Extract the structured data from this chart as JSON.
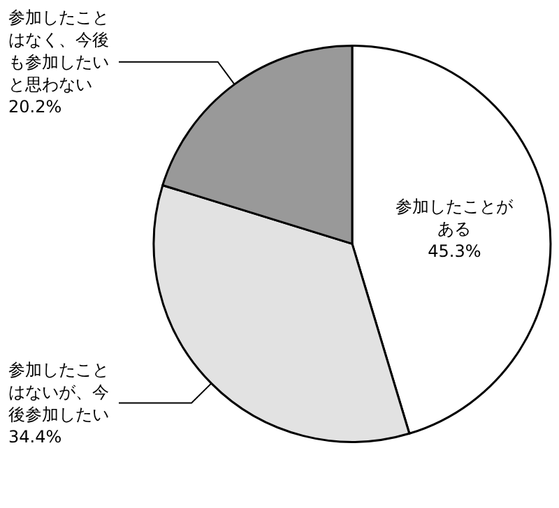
{
  "chart_data": {
    "type": "pie",
    "categories": [
      "参加したことがある",
      "参加したことはないが、今後参加したい",
      "参加したことはなく、今後も参加したいと思わない"
    ],
    "values": [
      45.3,
      34.4,
      20.2
    ],
    "value_labels": [
      "45.3%",
      "34.4%",
      "20.2%"
    ],
    "colors": [
      "#ffffff",
      "#e2e2e2",
      "#999999"
    ],
    "legend": false
  }
}
